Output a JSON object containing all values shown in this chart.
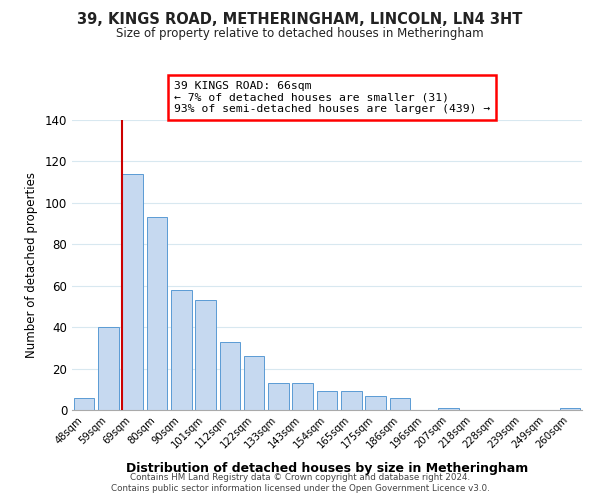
{
  "title": "39, KINGS ROAD, METHERINGHAM, LINCOLN, LN4 3HT",
  "subtitle": "Size of property relative to detached houses in Metheringham",
  "xlabel": "Distribution of detached houses by size in Metheringham",
  "ylabel": "Number of detached properties",
  "bar_labels": [
    "48sqm",
    "59sqm",
    "69sqm",
    "80sqm",
    "90sqm",
    "101sqm",
    "112sqm",
    "122sqm",
    "133sqm",
    "143sqm",
    "154sqm",
    "165sqm",
    "175sqm",
    "186sqm",
    "196sqm",
    "207sqm",
    "218sqm",
    "228sqm",
    "239sqm",
    "249sqm",
    "260sqm"
  ],
  "bar_values": [
    6,
    40,
    114,
    93,
    58,
    53,
    33,
    26,
    13,
    13,
    9,
    9,
    7,
    6,
    0,
    1,
    0,
    0,
    0,
    0,
    1
  ],
  "bar_color": "#c6d9f0",
  "bar_edge_color": "#5a9bd4",
  "highlight_bar_index": 2,
  "highlight_color": "#cc0000",
  "ylim": [
    0,
    140
  ],
  "yticks": [
    0,
    20,
    40,
    60,
    80,
    100,
    120,
    140
  ],
  "annotation_title": "39 KINGS ROAD: 66sqm",
  "annotation_line1": "← 7% of detached houses are smaller (31)",
  "annotation_line2": "93% of semi-detached houses are larger (439) →",
  "footer1": "Contains HM Land Registry data © Crown copyright and database right 2024.",
  "footer2": "Contains public sector information licensed under the Open Government Licence v3.0.",
  "background_color": "#ffffff",
  "grid_color": "#d8e8f0"
}
